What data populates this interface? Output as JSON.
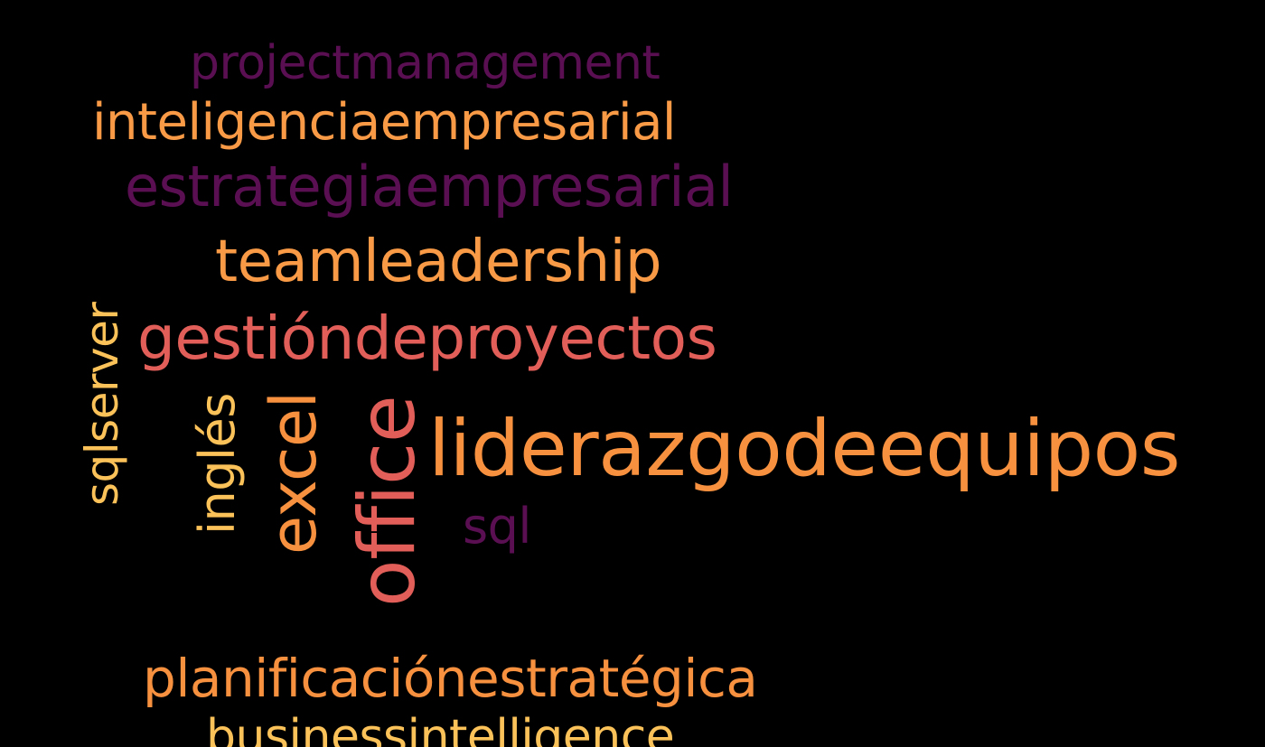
{
  "wordcloud": {
    "background": "#000000",
    "words": {
      "projectmanagement": {
        "text": "projectmanagement",
        "color": "#5b0f53"
      },
      "inteligenciaempresarial": {
        "text": "inteligenciaempresarial",
        "color": "#f89a46"
      },
      "estrategiaempresarial": {
        "text": "estrategiaempresarial",
        "color": "#5b0f53"
      },
      "teamleadership": {
        "text": "teamleadership",
        "color": "#f89a46"
      },
      "gestiondeproyectos": {
        "text": "gestióndeproyectos",
        "color": "#e25f59"
      },
      "liderazgodeequipos": {
        "text": "liderazgodeequipos",
        "color": "#f7913f"
      },
      "sql": {
        "text": "sql",
        "color": "#5b0f53"
      },
      "planificacionestrategica": {
        "text": "planificaciónestratégica",
        "color": "#f7913f"
      },
      "businessintelligence": {
        "text": "businessintelligence",
        "color": "#fbc25a"
      },
      "sqlserver": {
        "text": "sqlserver",
        "color": "#fbc25a"
      },
      "ingles": {
        "text": "inglés",
        "color": "#fbc25a"
      },
      "excel": {
        "text": "excel",
        "color": "#f7913f"
      },
      "office": {
        "text": "office",
        "color": "#e25f59"
      }
    }
  }
}
